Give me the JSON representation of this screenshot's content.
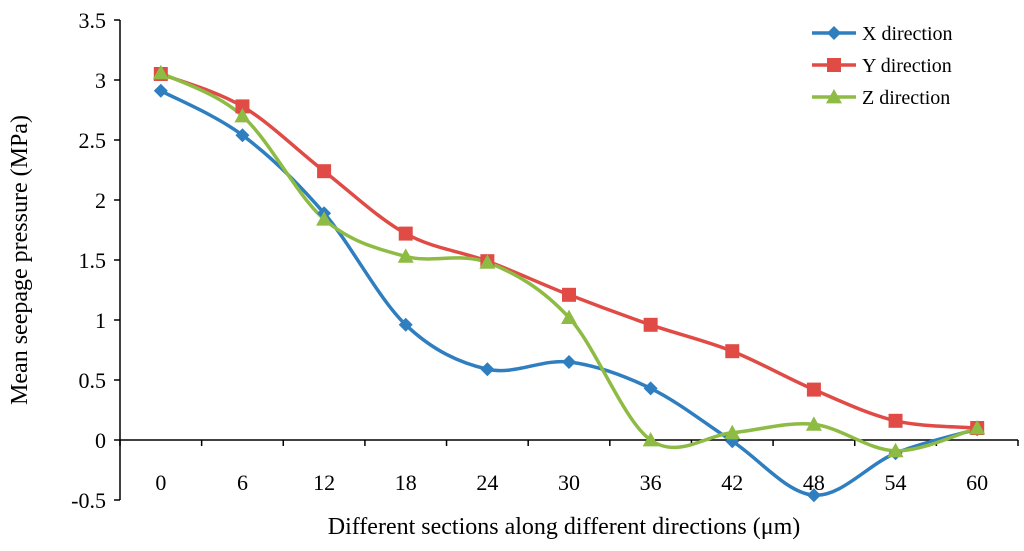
{
  "chart_data": {
    "type": "line",
    "title": "",
    "xlabel": "Different sections along different directions (μm)",
    "ylabel": "Mean seepage pressure (MPa)",
    "categories": [
      "0",
      "6",
      "12",
      "18",
      "24",
      "30",
      "36",
      "42",
      "48",
      "54",
      "60"
    ],
    "ylim": [
      -0.5,
      3.5
    ],
    "yticks": [
      "-0.5",
      "0",
      "0.5",
      "1",
      "1.5",
      "2",
      "2.5",
      "3",
      "3.5"
    ],
    "ytick_values": [
      -0.5,
      0,
      0.5,
      1,
      1.5,
      2,
      2.5,
      3,
      3.5
    ],
    "grid": false,
    "legend_position": "top-right",
    "smooth": true,
    "series": [
      {
        "name": "X direction",
        "color": "#2E7EC0",
        "marker": "diamond",
        "values": [
          2.91,
          2.54,
          1.89,
          0.96,
          0.59,
          0.65,
          0.43,
          -0.01,
          -0.46,
          -0.11,
          0.09
        ]
      },
      {
        "name": "Y direction",
        "color": "#E04B46",
        "marker": "square",
        "values": [
          3.05,
          2.78,
          2.24,
          1.72,
          1.49,
          1.21,
          0.96,
          0.74,
          0.42,
          0.16,
          0.1
        ]
      },
      {
        "name": "Z direction",
        "color": "#8DBB43",
        "marker": "triangle",
        "values": [
          3.06,
          2.7,
          1.84,
          1.53,
          1.48,
          1.02,
          0.0,
          0.06,
          0.13,
          -0.09,
          0.1
        ]
      }
    ]
  }
}
